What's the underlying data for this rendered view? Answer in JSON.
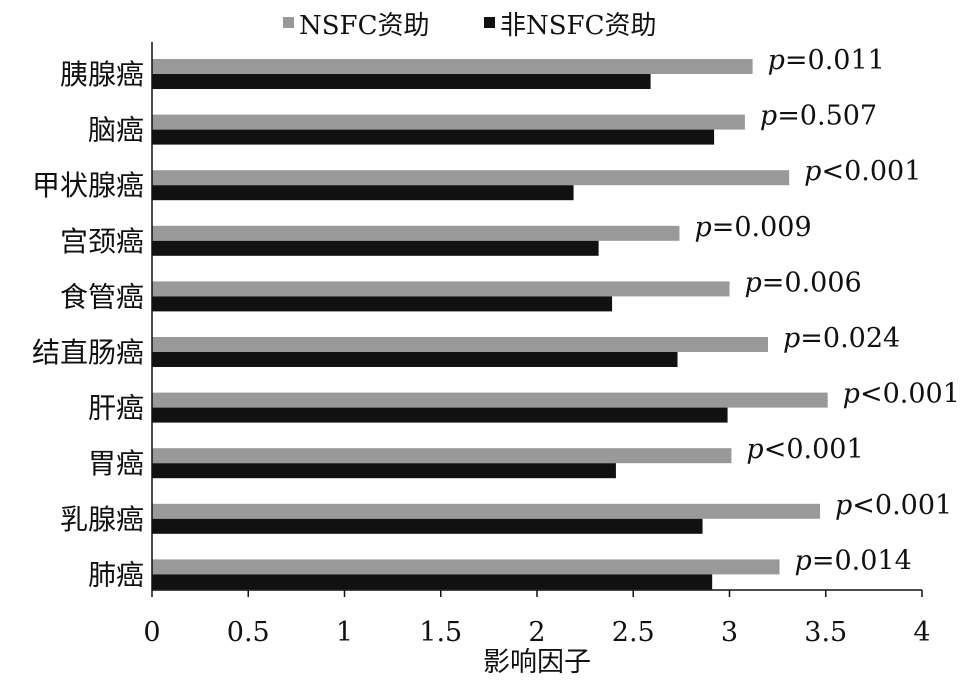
{
  "chart_data": {
    "type": "bar",
    "orientation": "horizontal",
    "categories": [
      "胰腺癌",
      "脑癌",
      "甲状腺癌",
      "宫颈癌",
      "食管癌",
      "结直肠癌",
      "肝癌",
      "胃癌",
      "乳腺癌",
      "肺癌"
    ],
    "series": [
      {
        "name": "NSFC资助",
        "color": "#999999",
        "values": [
          3.12,
          3.08,
          3.31,
          2.74,
          3.0,
          3.2,
          3.51,
          3.01,
          3.47,
          3.26
        ]
      },
      {
        "name": "非NSFC资助",
        "color": "#111111",
        "values": [
          2.59,
          2.92,
          2.19,
          2.32,
          2.39,
          2.73,
          2.99,
          2.41,
          2.86,
          2.91
        ]
      }
    ],
    "annotations": [
      {
        "category": "胰腺癌",
        "p": "p",
        "rest": "=0.011"
      },
      {
        "category": "脑癌",
        "p": "p",
        "rest": "=0.507"
      },
      {
        "category": "甲状腺癌",
        "p": "p",
        "rest": "<0.001"
      },
      {
        "category": "宫颈癌",
        "p": "p",
        "rest": "=0.009"
      },
      {
        "category": "食管癌",
        "p": "p",
        "rest": "=0.006"
      },
      {
        "category": "结直肠癌",
        "p": "p",
        "rest": "=0.024"
      },
      {
        "category": "肝癌",
        "p": "p",
        "rest": "<0.001"
      },
      {
        "category": "胃癌",
        "p": "p",
        "rest": "<0.001"
      },
      {
        "category": "乳腺癌",
        "p": "p",
        "rest": "<0.001"
      },
      {
        "category": "肺癌",
        "p": "p",
        "rest": "=0.014"
      }
    ],
    "xlabel": "影响因子",
    "ylabel": "",
    "xlim": [
      0,
      4
    ],
    "xticks": [
      "0",
      "0.5",
      "1",
      "1.5",
      "2",
      "2.5",
      "3",
      "3.5",
      "4"
    ],
    "grid": false,
    "legend_position": "top"
  }
}
